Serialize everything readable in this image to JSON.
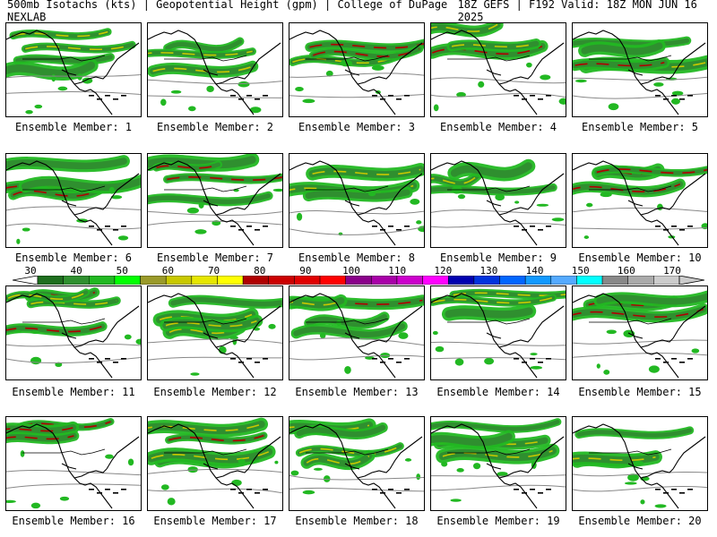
{
  "header": {
    "left": "500mb Isotachs (kts) | Geopotential Height (gpm) | College of DuPage NEXLAB",
    "right": "18Z GEFS | F192 Valid: 18Z MON JUN 16 2025"
  },
  "caption_prefix": "Ensemble Member: ",
  "members": [
    {
      "id": "1",
      "label": "Ensemble Member: 1"
    },
    {
      "id": "2",
      "label": "Ensemble Member: 2"
    },
    {
      "id": "3",
      "label": "Ensemble Member: 3"
    },
    {
      "id": "4",
      "label": "Ensemble Member: 4"
    },
    {
      "id": "5",
      "label": "Ensemble Member: 5"
    },
    {
      "id": "6",
      "label": "Ensemble Member: 6"
    },
    {
      "id": "7",
      "label": "Ensemble Member: 7"
    },
    {
      "id": "8",
      "label": "Ensemble Member: 8"
    },
    {
      "id": "9",
      "label": "Ensemble Member: 9"
    },
    {
      "id": "10",
      "label": "Ensemble Member: 10"
    },
    {
      "id": "11",
      "label": "Ensemble Member: 11"
    },
    {
      "id": "12",
      "label": "Ensemble Member: 12"
    },
    {
      "id": "13",
      "label": "Ensemble Member: 13"
    },
    {
      "id": "14",
      "label": "Ensemble Member: 14"
    },
    {
      "id": "15",
      "label": "Ensemble Member: 15"
    },
    {
      "id": "16",
      "label": "Ensemble Member: 16"
    },
    {
      "id": "17",
      "label": "Ensemble Member: 17"
    },
    {
      "id": "18",
      "label": "Ensemble Member: 18"
    },
    {
      "id": "19",
      "label": "Ensemble Member: 19"
    },
    {
      "id": "20",
      "label": "Ensemble Member: 20"
    }
  ],
  "colorbar": {
    "ticks": [
      "30",
      "40",
      "50",
      "60",
      "70",
      "80",
      "90",
      "100",
      "110",
      "120",
      "130",
      "140",
      "150",
      "160",
      "170"
    ],
    "colors": [
      "#1e6e1e",
      "#2f8f2f",
      "#22b822",
      "#00ff00",
      "#9a9a2a",
      "#c8c800",
      "#e6e600",
      "#ffff00",
      "#b00000",
      "#cc0000",
      "#e00000",
      "#ff0000",
      "#8a008a",
      "#a800a8",
      "#cc00cc",
      "#ff00ff",
      "#0000b0",
      "#0033dd",
      "#0066ff",
      "#1199ff",
      "#55aaff",
      "#00ffff",
      "#888888",
      "#aaaaaa",
      "#cccccc"
    ]
  }
}
